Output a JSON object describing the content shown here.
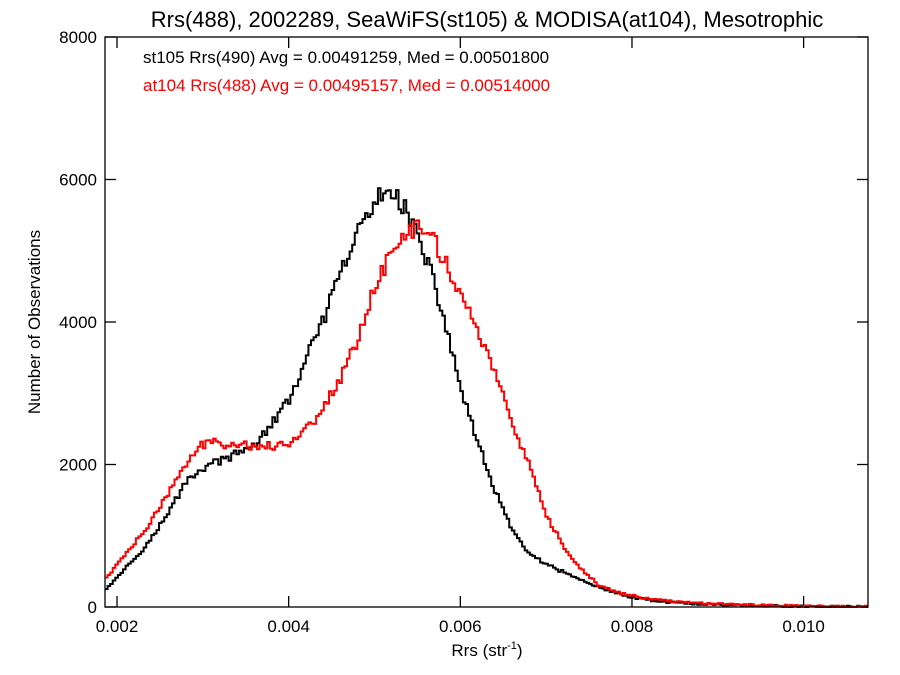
{
  "chart_data": {
    "type": "line",
    "step": true,
    "title": "Rrs(488), 2002289, SeaWiFS(st105) & MODISA(at104), Mesotrophic",
    "xlabel_text": "Rrs (str",
    "xlabel_sup": "-1",
    "xlabel_close": ")",
    "ylabel": "Number of Observations",
    "xlim": [
      0.00186,
      0.01075
    ],
    "ylim": [
      0,
      8000
    ],
    "xticks": [
      0.002,
      0.004,
      0.006,
      0.008,
      0.01
    ],
    "xtick_labels": [
      "0.002",
      "0.004",
      "0.006",
      "0.008",
      "0.010"
    ],
    "yticks": [
      0,
      2000,
      4000,
      6000,
      8000
    ],
    "ytick_labels": [
      "0",
      "2000",
      "4000",
      "6000",
      "8000"
    ],
    "grid": false,
    "legend_position": "top-left",
    "series": [
      {
        "name": "st105 Rrs(490) Avg = 0.00491259, Med = 0.00501800",
        "color": "#000000",
        "x": [
          0.00186,
          0.002,
          0.0022,
          0.0024,
          0.0026,
          0.0028,
          0.003,
          0.0032,
          0.0034,
          0.0036,
          0.0038,
          0.004,
          0.0042,
          0.0044,
          0.0046,
          0.0048,
          0.005,
          0.0051,
          0.0052,
          0.0053,
          0.0054,
          0.0055,
          0.0056,
          0.0058,
          0.006,
          0.0062,
          0.0064,
          0.0066,
          0.0068,
          0.007,
          0.0072,
          0.0074,
          0.0076,
          0.0078,
          0.008,
          0.0082,
          0.0085,
          0.009,
          0.0095,
          0.01,
          0.01075
        ],
        "y": [
          250,
          420,
          680,
          960,
          1320,
          1760,
          1950,
          2060,
          2140,
          2280,
          2550,
          2900,
          3450,
          4020,
          4650,
          5250,
          5650,
          5800,
          5870,
          5720,
          5500,
          5200,
          4900,
          4100,
          3100,
          2300,
          1650,
          1080,
          760,
          590,
          490,
          390,
          280,
          200,
          135,
          95,
          60,
          35,
          18,
          8,
          2
        ]
      },
      {
        "name": "at104 Rrs(488) Avg = 0.00495157, Med = 0.00514000",
        "color": "#ff0000",
        "x": [
          0.00186,
          0.002,
          0.0022,
          0.0024,
          0.0026,
          0.0028,
          0.003,
          0.0031,
          0.0032,
          0.0034,
          0.0036,
          0.0038,
          0.004,
          0.0042,
          0.0044,
          0.0046,
          0.0048,
          0.005,
          0.0052,
          0.0054,
          0.0055,
          0.0056,
          0.0057,
          0.0058,
          0.006,
          0.0062,
          0.0064,
          0.0066,
          0.0068,
          0.007,
          0.0072,
          0.0074,
          0.0076,
          0.0078,
          0.008,
          0.0082,
          0.0085,
          0.009,
          0.0095,
          0.01,
          0.01075
        ],
        "y": [
          380,
          600,
          880,
          1200,
          1600,
          2000,
          2280,
          2340,
          2300,
          2280,
          2270,
          2260,
          2300,
          2480,
          2800,
          3200,
          3750,
          4500,
          4950,
          5250,
          5380,
          5320,
          5150,
          4900,
          4400,
          3900,
          3300,
          2600,
          1980,
          1280,
          850,
          530,
          320,
          220,
          160,
          115,
          75,
          45,
          25,
          12,
          3
        ]
      }
    ]
  }
}
